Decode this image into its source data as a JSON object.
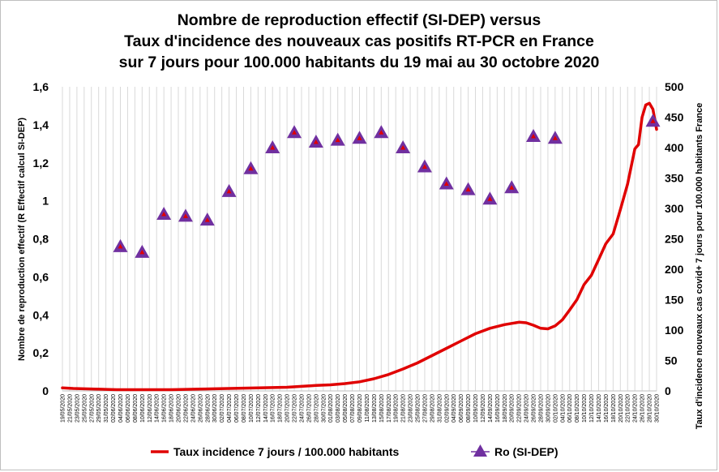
{
  "chart_data": {
    "type": "line",
    "title": [
      "Nombre de reproduction effectif (SI-DEP) versus",
      "Taux d'incidence des nouveaux cas positifs RT-PCR en France",
      "sur 7 jours pour 100.000 habitants du 19 mai au 30 octobre 2020"
    ],
    "ylabel_left": "Nombre de reproduction effectif (R Effectif calcul SI-DEP)",
    "ylabel_right": "Taux d'incidence nouveaux cas covid+ 7 jours pour 100.000 habitants France",
    "ylim_left": [
      0,
      1.6
    ],
    "yticks_left": [
      "0",
      "0,2",
      "0,4",
      "0,6",
      "0,8",
      "1",
      "1,2",
      "1,4",
      "1,6"
    ],
    "ylim_right": [
      0,
      500
    ],
    "yticks_right": [
      "0",
      "50",
      "100",
      "150",
      "200",
      "250",
      "300",
      "350",
      "400",
      "450",
      "500"
    ],
    "x_dates": [
      "19/05/2020",
      "21/05/2020",
      "23/05/2020",
      "25/05/2020",
      "27/05/2020",
      "29/05/2020",
      "31/05/2020",
      "02/06/2020",
      "04/06/2020",
      "06/06/2020",
      "08/06/2020",
      "10/06/2020",
      "12/06/2020",
      "14/06/2020",
      "16/06/2020",
      "18/06/2020",
      "20/06/2020",
      "22/06/2020",
      "24/06/2020",
      "26/06/2020",
      "28/06/2020",
      "30/06/2020",
      "02/07/2020",
      "04/07/2020",
      "06/07/2020",
      "08/07/2020",
      "10/07/2020",
      "12/07/2020",
      "14/07/2020",
      "16/07/2020",
      "18/07/2020",
      "20/07/2020",
      "22/07/2020",
      "24/07/2020",
      "26/07/2020",
      "28/07/2020",
      "30/07/2020",
      "01/08/2020",
      "03/08/2020",
      "05/08/2020",
      "07/08/2020",
      "09/08/2020",
      "11/08/2020",
      "13/08/2020",
      "15/08/2020",
      "17/08/2020",
      "19/08/2020",
      "21/08/2020",
      "23/08/2020",
      "25/08/2020",
      "27/08/2020",
      "29/08/2020",
      "31/08/2020",
      "02/09/2020",
      "04/09/2020",
      "06/09/2020",
      "08/09/2020",
      "10/09/2020",
      "12/09/2020",
      "14/09/2020",
      "16/09/2020",
      "18/09/2020",
      "20/09/2020",
      "22/09/2020",
      "24/09/2020",
      "26/09/2020",
      "28/09/2020",
      "30/09/2020",
      "02/10/2020",
      "04/10/2020",
      "06/10/2020",
      "08/10/2020",
      "10/10/2020",
      "12/10/2020",
      "14/10/2020",
      "16/10/2020",
      "18/10/2020",
      "20/10/2020",
      "22/10/2020",
      "24/10/2020",
      "26/10/2020",
      "28/10/2020",
      "30/10/2020"
    ],
    "series": [
      {
        "name": "Taux incidence 7 jours / 100.000 habitants",
        "axis": "right",
        "color": "#e00000",
        "points": [
          [
            "19/05/2020",
            5
          ],
          [
            "22/05/2020",
            4
          ],
          [
            "25/05/2020",
            3.5
          ],
          [
            "28/05/2020",
            3
          ],
          [
            "31/05/2020",
            2.5
          ],
          [
            "03/06/2020",
            2
          ],
          [
            "07/06/2020",
            2
          ],
          [
            "10/06/2020",
            2
          ],
          [
            "14/06/2020",
            2
          ],
          [
            "18/06/2020",
            2
          ],
          [
            "22/06/2020",
            2.5
          ],
          [
            "26/06/2020",
            3
          ],
          [
            "30/06/2020",
            3.5
          ],
          [
            "04/07/2020",
            4
          ],
          [
            "08/07/2020",
            4.5
          ],
          [
            "12/07/2020",
            5
          ],
          [
            "16/07/2020",
            5.5
          ],
          [
            "20/07/2020",
            6
          ],
          [
            "24/07/2020",
            7.5
          ],
          [
            "28/07/2020",
            9
          ],
          [
            "01/08/2020",
            10
          ],
          [
            "05/08/2020",
            12
          ],
          [
            "09/08/2020",
            15
          ],
          [
            "13/08/2020",
            20
          ],
          [
            "17/08/2020",
            27
          ],
          [
            "21/08/2020",
            36
          ],
          [
            "25/08/2020",
            46
          ],
          [
            "29/08/2020",
            58
          ],
          [
            "02/09/2020",
            70
          ],
          [
            "06/09/2020",
            82
          ],
          [
            "10/09/2020",
            94
          ],
          [
            "14/09/2020",
            103
          ],
          [
            "18/09/2020",
            109
          ],
          [
            "22/09/2020",
            113
          ],
          [
            "24/09/2020",
            112
          ],
          [
            "26/09/2020",
            108
          ],
          [
            "28/09/2020",
            103
          ],
          [
            "30/09/2020",
            102
          ],
          [
            "02/10/2020",
            107
          ],
          [
            "04/10/2020",
            117
          ],
          [
            "06/10/2020",
            133
          ],
          [
            "08/10/2020",
            150
          ],
          [
            "10/10/2020",
            175
          ],
          [
            "12/10/2020",
            190
          ],
          [
            "14/10/2020",
            216
          ],
          [
            "16/10/2020",
            242
          ],
          [
            "18/10/2020",
            258
          ],
          [
            "20/10/2020",
            298
          ],
          [
            "22/10/2020",
            340
          ],
          [
            "24/10/2020",
            398
          ],
          [
            "25/10/2020",
            405
          ],
          [
            "26/10/2020",
            450
          ],
          [
            "27/10/2020",
            470
          ],
          [
            "28/10/2020",
            473
          ],
          [
            "29/10/2020",
            463
          ],
          [
            "30/10/2020",
            430
          ]
        ]
      },
      {
        "name": "Ro (SI-DEP)",
        "axis": "left",
        "color": "#7030a0",
        "marker": "triangle",
        "points": [
          [
            "04/06/2020",
            0.76
          ],
          [
            "10/06/2020",
            0.73
          ],
          [
            "16/06/2020",
            0.93
          ],
          [
            "22/06/2020",
            0.92
          ],
          [
            "28/06/2020",
            0.9
          ],
          [
            "04/07/2020",
            1.05
          ],
          [
            "10/07/2020",
            1.17
          ],
          [
            "16/07/2020",
            1.28
          ],
          [
            "22/07/2020",
            1.36
          ],
          [
            "28/07/2020",
            1.31
          ],
          [
            "03/08/2020",
            1.32
          ],
          [
            "09/08/2020",
            1.33
          ],
          [
            "15/08/2020",
            1.36
          ],
          [
            "21/08/2020",
            1.28
          ],
          [
            "27/08/2020",
            1.18
          ],
          [
            "02/09/2020",
            1.09
          ],
          [
            "08/09/2020",
            1.06
          ],
          [
            "14/09/2020",
            1.01
          ],
          [
            "20/09/2020",
            1.07
          ],
          [
            "26/09/2020",
            1.34
          ],
          [
            "02/10/2020",
            1.33
          ],
          [
            "29/10/2020",
            1.42
          ]
        ]
      }
    ],
    "legend_position": "bottom",
    "grid": "vertical"
  }
}
